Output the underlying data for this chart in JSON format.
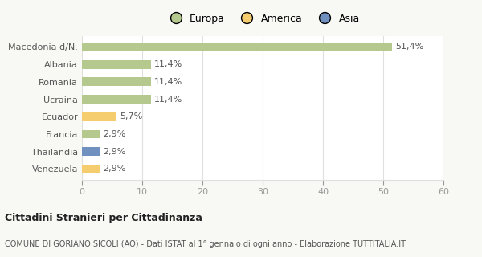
{
  "categories": [
    "Macedonia d/N.",
    "Albania",
    "Romania",
    "Ucraina",
    "Ecuador",
    "Francia",
    "Thailandia",
    "Venezuela"
  ],
  "values": [
    51.4,
    11.4,
    11.4,
    11.4,
    5.7,
    2.9,
    2.9,
    2.9
  ],
  "labels": [
    "51,4%",
    "11,4%",
    "11,4%",
    "11,4%",
    "5,7%",
    "2,9%",
    "2,9%",
    "2,9%"
  ],
  "colors": [
    "#b5c98e",
    "#b5c98e",
    "#b5c98e",
    "#b5c98e",
    "#f5cc6e",
    "#b5c98e",
    "#7090c0",
    "#f5cc6e"
  ],
  "legend": [
    {
      "label": "Europa",
      "color": "#b5c98e"
    },
    {
      "label": "America",
      "color": "#f5cc6e"
    },
    {
      "label": "Asia",
      "color": "#7090c0"
    }
  ],
  "xlim": [
    0,
    60
  ],
  "xticks": [
    0,
    10,
    20,
    30,
    40,
    50,
    60
  ],
  "title": "Cittadini Stranieri per Cittadinanza",
  "subtitle": "COMUNE DI GORIANO SICOLI (AQ) - Dati ISTAT al 1° gennaio di ogni anno - Elaborazione TUTTITALIA.IT",
  "bg_color": "#f8f8f5",
  "plot_bg": "#ffffff",
  "grid_color": "#e0e0e0",
  "bar_height": 0.5,
  "label_fontsize": 8,
  "ytick_fontsize": 8,
  "xtick_fontsize": 8,
  "title_fontsize": 9,
  "subtitle_fontsize": 7
}
